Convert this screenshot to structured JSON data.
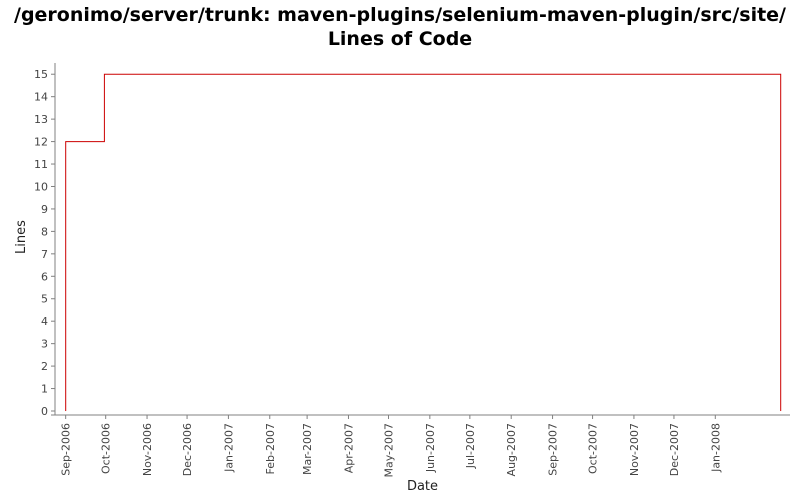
{
  "title_line_1": "/geronimo/server/trunk: maven-plugins/selenium-maven-plugin/src/site/",
  "title_line_2": "Lines of Code",
  "colors": {
    "series": "#cc0000",
    "axis": "#808080",
    "tick_text": "#444444",
    "label_text": "#222222",
    "background": "#ffffff"
  },
  "chart_data": {
    "type": "line",
    "title": "/geronimo/server/trunk: maven-plugins/selenium-maven-plugin/src/site/ Lines of Code",
    "xlabel": "Date",
    "ylabel": "Lines",
    "ylim": [
      0,
      15.5
    ],
    "xlim": [
      "2006-08-24",
      "2008-02-26"
    ],
    "y_ticks": [
      0,
      1,
      2,
      3,
      4,
      5,
      6,
      7,
      8,
      9,
      10,
      11,
      12,
      13,
      14,
      15
    ],
    "x_ticks": [
      {
        "date": "2006-09-01",
        "label": "Sep-2006"
      },
      {
        "date": "2006-10-01",
        "label": "Oct-2006"
      },
      {
        "date": "2006-11-01",
        "label": "Nov-2006"
      },
      {
        "date": "2006-12-01",
        "label": "Dec-2006"
      },
      {
        "date": "2007-01-01",
        "label": "Jan-2007"
      },
      {
        "date": "2007-02-01",
        "label": "Feb-2007"
      },
      {
        "date": "2007-03-01",
        "label": "Mar-2007"
      },
      {
        "date": "2007-04-01",
        "label": "Apr-2007"
      },
      {
        "date": "2007-05-01",
        "label": "May-2007"
      },
      {
        "date": "2007-06-01",
        "label": "Jun-2007"
      },
      {
        "date": "2007-07-01",
        "label": "Jul-2007"
      },
      {
        "date": "2007-08-01",
        "label": "Aug-2007"
      },
      {
        "date": "2007-09-01",
        "label": "Sep-2007"
      },
      {
        "date": "2007-10-01",
        "label": "Oct-2007"
      },
      {
        "date": "2007-11-01",
        "label": "Nov-2007"
      },
      {
        "date": "2007-12-01",
        "label": "Dec-2007"
      },
      {
        "date": "2008-01-01",
        "label": "Jan-2008"
      }
    ],
    "grid": false,
    "step": true,
    "series": [
      {
        "points": [
          {
            "x": "2006-09-01",
            "y": 0
          },
          {
            "x": "2006-09-01",
            "y": 12
          },
          {
            "x": "2006-09-30",
            "y": 12
          },
          {
            "x": "2006-09-30",
            "y": 15
          },
          {
            "x": "2008-02-19",
            "y": 15
          },
          {
            "x": "2008-02-19",
            "y": 0
          }
        ]
      }
    ]
  }
}
